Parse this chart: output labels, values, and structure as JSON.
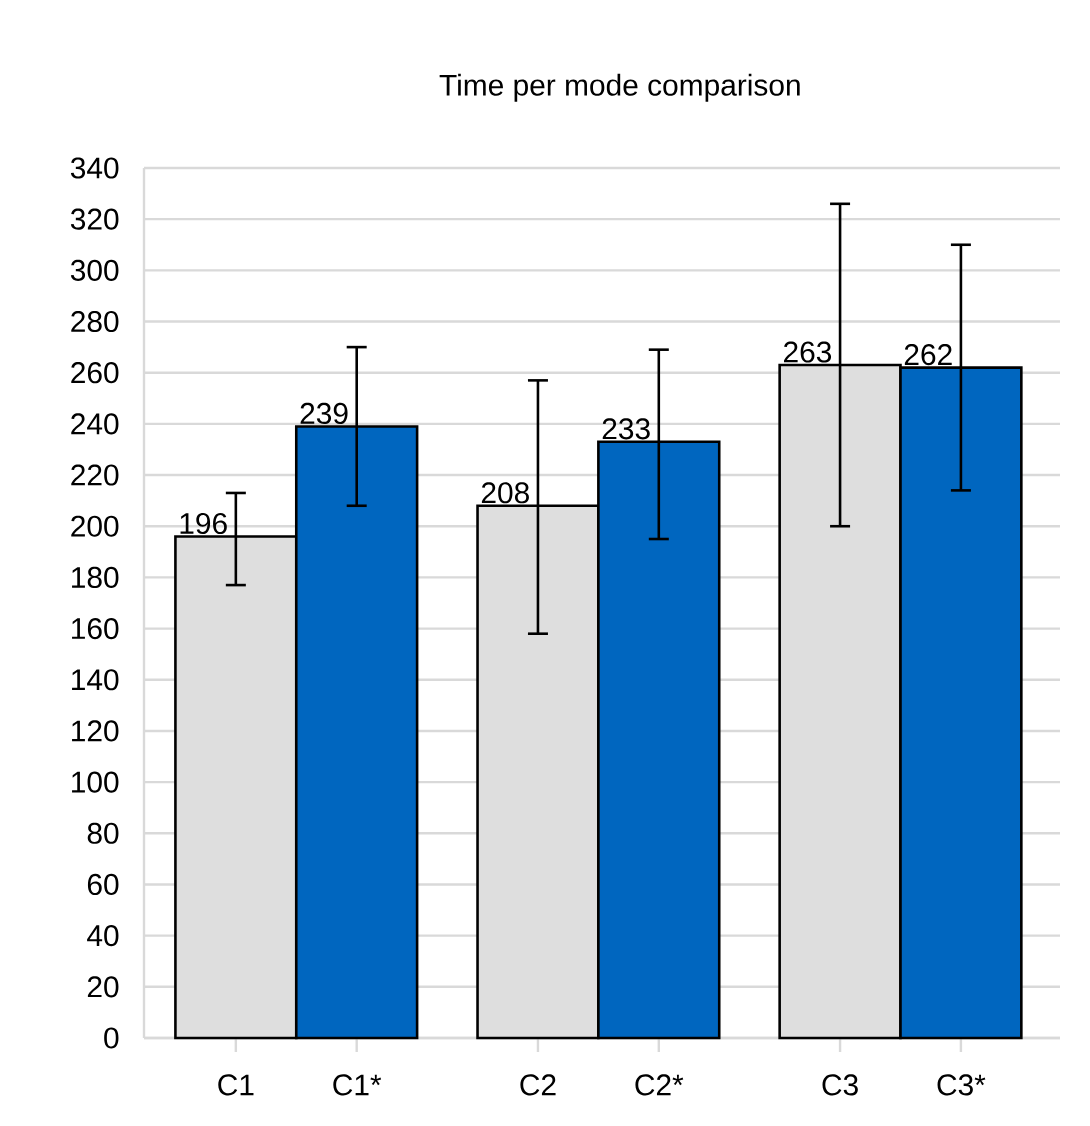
{
  "chart_data": {
    "type": "bar",
    "title": "Time per mode comparison",
    "categories": [
      "C1",
      "C1*",
      "C2",
      "C2*",
      "C3",
      "C3*"
    ],
    "values": [
      196,
      239,
      208,
      233,
      263,
      262
    ],
    "colors": [
      "#dedede",
      "#0066bf",
      "#dedede",
      "#0066bf",
      "#dedede",
      "#0066bf"
    ],
    "errors": [
      [
        177,
        213
      ],
      [
        208,
        270
      ],
      [
        158,
        257
      ],
      [
        195,
        269
      ],
      [
        200,
        326
      ],
      [
        214,
        310
      ]
    ],
    "ylim": [
      0,
      340
    ],
    "yticks": [
      0,
      20,
      40,
      60,
      80,
      100,
      120,
      140,
      160,
      180,
      200,
      220,
      240,
      260,
      280,
      300,
      320,
      340
    ],
    "grid": "y",
    "data_labels": true
  }
}
